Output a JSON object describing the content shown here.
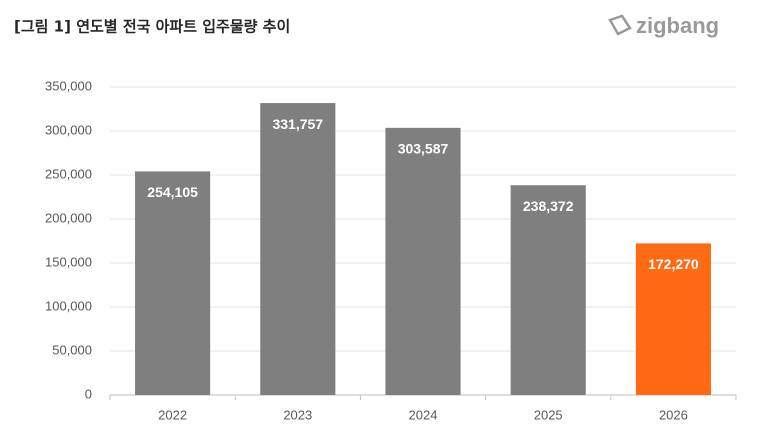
{
  "logo": "zigbang",
  "chart_data": {
    "type": "bar",
    "title": "[그림 1] 연도별 전국 아파트 입주물량 추이",
    "categories": [
      "2022",
      "2023",
      "2024",
      "2025",
      "2026"
    ],
    "values": [
      254105,
      331757,
      303587,
      238372,
      172270
    ],
    "value_labels": [
      "254,105",
      "331,757",
      "303,587",
      "238,372",
      "172,270"
    ],
    "colors": [
      "#7f7f7f",
      "#7f7f7f",
      "#7f7f7f",
      "#7f7f7f",
      "#ff6a13"
    ],
    "ylim": [
      0,
      350000
    ],
    "yticks": [
      0,
      {
        "value": 50000,
        "label": "50,000"
      },
      {
        "value": 100000,
        "label": "100,000"
      },
      {
        "value": 150000,
        "label": "150,000"
      },
      {
        "value": 200000,
        "label": "200,000"
      },
      {
        "value": 250000,
        "label": "250,000"
      },
      {
        "value": 300000,
        "label": "300,000"
      },
      {
        "value": 350000,
        "label": "350,000"
      }
    ],
    "grid": true
  }
}
